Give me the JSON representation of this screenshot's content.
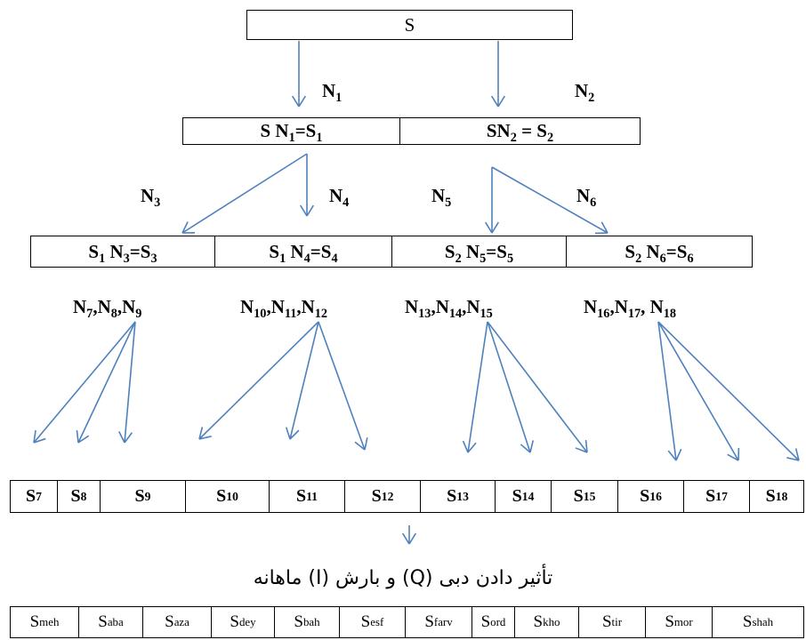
{
  "nodes": {
    "root": "S",
    "level1": [
      {
        "text": "S N",
        "sub": "1",
        "tail": "=S",
        "tail_sub": "1"
      },
      {
        "text": "SN",
        "sub": "2",
        "tail": " = S",
        "tail_sub": "2"
      }
    ],
    "level2": [
      {
        "text": "S",
        "sub": "1",
        "mid": " N",
        "mid_sub": "3",
        "tail": "=S",
        "tail_sub": "3"
      },
      {
        "text": "S",
        "sub": "1",
        "mid": " N",
        "mid_sub": "4",
        "tail": "=S",
        "tail_sub": "4"
      },
      {
        "text": "S",
        "sub": "2",
        "mid": " N",
        "mid_sub": "5",
        "tail": "=S",
        "tail_sub": "5"
      },
      {
        "text": "S",
        "sub": "2",
        "mid": " N",
        "mid_sub": "6",
        "tail": "=S",
        "tail_sub": "6"
      }
    ]
  },
  "edge_labels": {
    "n1": {
      "text": "N",
      "sub": "1"
    },
    "n2": {
      "text": "N",
      "sub": "2"
    },
    "n3": {
      "text": "N",
      "sub": "3"
    },
    "n4": {
      "text": "N",
      "sub": "4"
    },
    "n5": {
      "text": "N",
      "sub": "5"
    },
    "n6": {
      "text": "N",
      "sub": "6"
    },
    "groups": [
      {
        "parts": [
          [
            "N",
            "7"
          ],
          [
            "N",
            "8"
          ],
          [
            "N",
            "9"
          ]
        ],
        "seps": [
          ",",
          ","
        ]
      },
      {
        "parts": [
          [
            "N",
            "10"
          ],
          [
            "N",
            "11"
          ],
          [
            "N",
            "12"
          ]
        ],
        "seps": [
          ",",
          ","
        ]
      },
      {
        "parts": [
          [
            "N",
            "13"
          ],
          [
            "N",
            "14"
          ],
          [
            "N",
            "15"
          ]
        ],
        "seps": [
          ",",
          ","
        ]
      },
      {
        "parts": [
          [
            "N",
            "16"
          ],
          [
            "N",
            "17"
          ],
          [
            "N",
            "18"
          ]
        ],
        "seps": [
          ",",
          ", "
        ]
      }
    ]
  },
  "scenario_row": [
    "7",
    "8",
    "9",
    "10",
    "11",
    "12",
    "13",
    "14",
    "15",
    "16",
    "17",
    "18"
  ],
  "scenario_prefix": "S",
  "caption": "تأثیر دادن دبی (Q) و بارش (I) ماهانه",
  "month_row": [
    "meh",
    "aba",
    "aza",
    "dey",
    "bah",
    "esf",
    "farv",
    "ord",
    "kho",
    "tir",
    "mor",
    "shah"
  ],
  "colors": {
    "arrow": "#4f81bd",
    "border": "#000000"
  }
}
